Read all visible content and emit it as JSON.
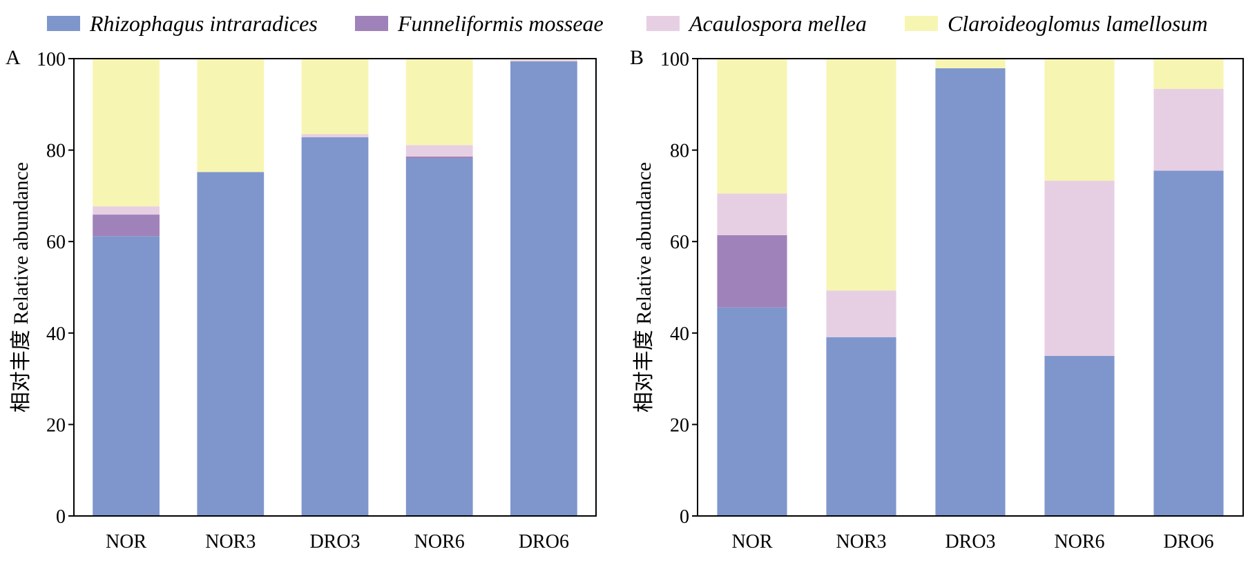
{
  "legend": {
    "items": [
      {
        "name": "Rhizophagus intraradices",
        "color": "#7f96cc"
      },
      {
        "name": "Funneliformis mosseae",
        "color": "#a082ba"
      },
      {
        "name": "Acaulospora mellea",
        "color": "#e7cfe3"
      },
      {
        "name": "Claroideoglomus lamellosum",
        "color": "#f7f5b2"
      }
    ]
  },
  "chart_data": [
    {
      "type": "bar",
      "stacked": true,
      "panel_label": "A",
      "ylabel": "相对丰度 Relative abundance",
      "ylim": [
        0,
        100
      ],
      "yticks": [
        0,
        20,
        40,
        60,
        80,
        100
      ],
      "categories": [
        "NOR",
        "NOR3",
        "DRO3",
        "NOR6",
        "DRO6"
      ],
      "series": [
        {
          "name": "Rhizophagus intraradices",
          "values": [
            61.2,
            75.2,
            82.8,
            78.2,
            99.4
          ]
        },
        {
          "name": "Funneliformis mosseae",
          "values": [
            4.7,
            0,
            0,
            0.4,
            0
          ]
        },
        {
          "name": "Acaulospora mellea",
          "values": [
            1.8,
            0,
            0.7,
            2.5,
            0.3
          ]
        },
        {
          "name": "Claroideoglomus lamellosum",
          "values": [
            32.3,
            24.8,
            16.5,
            18.9,
            0.3
          ]
        }
      ]
    },
    {
      "type": "bar",
      "stacked": true,
      "panel_label": "B",
      "ylabel": "相对丰度 Relative abundance",
      "ylim": [
        0,
        100
      ],
      "yticks": [
        0,
        20,
        40,
        60,
        80,
        100
      ],
      "categories": [
        "NOR",
        "NOR3",
        "DRO3",
        "NOR6",
        "DRO6"
      ],
      "series": [
        {
          "name": "Rhizophagus intraradices",
          "values": [
            45.6,
            39.1,
            97.9,
            35.0,
            75.5
          ]
        },
        {
          "name": "Funneliformis mosseae",
          "values": [
            15.8,
            0,
            0,
            0,
            0
          ]
        },
        {
          "name": "Acaulospora mellea",
          "values": [
            9.1,
            10.2,
            0,
            38.3,
            17.9
          ]
        },
        {
          "name": "Claroideoglomus lamellosum",
          "values": [
            29.5,
            50.7,
            2.1,
            26.7,
            6.6
          ]
        }
      ]
    }
  ]
}
